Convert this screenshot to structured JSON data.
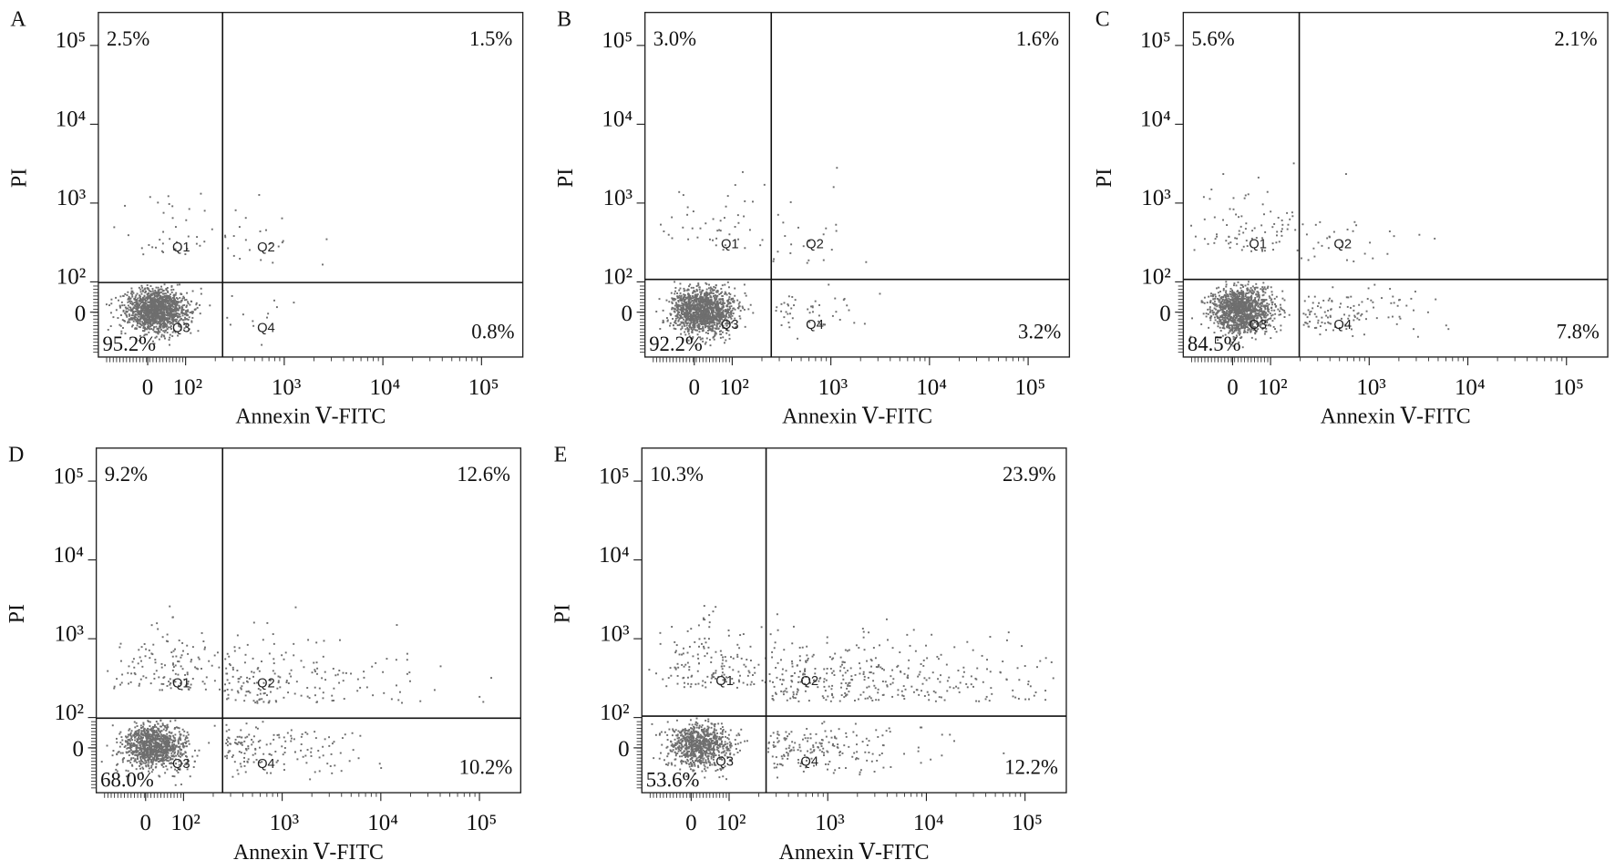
{
  "chart_data": [
    {
      "type": "quadrant-scatter",
      "title": "A",
      "xlabel": "Annexin Ⅴ-FITC",
      "ylabel": "PI",
      "xlim": [
        -130,
        262144
      ],
      "ylim": [
        -148,
        262144
      ],
      "xticks": [
        0,
        {
          "value": 100,
          "label": "10²"
        },
        {
          "value": 1000,
          "label": "10³"
        },
        {
          "value": 10000,
          "label": "10⁴"
        },
        {
          "value": 100000,
          "label": "10⁵"
        }
      ],
      "yticks": [
        0,
        {
          "value": 100,
          "label": "10²"
        },
        {
          "value": 1000,
          "label": "10³"
        },
        {
          "value": 10000,
          "label": "10⁴"
        },
        {
          "value": 100000,
          "label": "10⁵"
        }
      ],
      "categories": [
        "Q1",
        "Q2",
        "Q3",
        "Q4"
      ],
      "values": [
        2.5,
        1.5,
        95.2,
        0.8
      ],
      "value_labels": [
        "2.5%",
        "1.5%",
        "95.2%",
        "0.8%"
      ],
      "color": "#6e6e6e"
    },
    {
      "type": "quadrant-scatter",
      "title": "B",
      "xlabel": "Annexin Ⅴ-FITC",
      "ylabel": "PI",
      "xlim": [
        -130,
        262144
      ],
      "ylim": [
        -148,
        262144
      ],
      "xticks": [
        0,
        {
          "value": 100,
          "label": "10²"
        },
        {
          "value": 1000,
          "label": "10³"
        },
        {
          "value": 10000,
          "label": "10⁴"
        },
        {
          "value": 100000,
          "label": "10⁵"
        }
      ],
      "yticks": [
        0,
        {
          "value": 100,
          "label": "10²"
        },
        {
          "value": 1000,
          "label": "10³"
        },
        {
          "value": 10000,
          "label": "10⁴"
        },
        {
          "value": 100000,
          "label": "10⁵"
        }
      ],
      "categories": [
        "Q1",
        "Q2",
        "Q3",
        "Q4"
      ],
      "values": [
        3.0,
        1.6,
        92.2,
        3.2
      ],
      "value_labels": [
        "3.0%",
        "1.6%",
        "92.2%",
        "3.2%"
      ],
      "color": "#6e6e6e"
    },
    {
      "type": "quadrant-scatter",
      "title": "C",
      "xlabel": "Annexin Ⅴ-FITC",
      "ylabel": "PI",
      "xlim": [
        -130,
        262144
      ],
      "ylim": [
        -148,
        262144
      ],
      "xticks": [
        0,
        {
          "value": 100,
          "label": "10²"
        },
        {
          "value": 1000,
          "label": "10³"
        },
        {
          "value": 10000,
          "label": "10⁴"
        },
        {
          "value": 100000,
          "label": "10⁵"
        }
      ],
      "yticks": [
        0,
        {
          "value": 100,
          "label": "10²"
        },
        {
          "value": 1000,
          "label": "10³"
        },
        {
          "value": 10000,
          "label": "10⁴"
        },
        {
          "value": 100000,
          "label": "10⁵"
        }
      ],
      "categories": [
        "Q1",
        "Q2",
        "Q3",
        "Q4"
      ],
      "values": [
        5.6,
        2.1,
        84.5,
        7.8
      ],
      "value_labels": [
        "5.6%",
        "2.1%",
        "84.5%",
        "7.8%"
      ],
      "color": "#6e6e6e"
    },
    {
      "type": "quadrant-scatter",
      "title": "D",
      "xlabel": "Annexin Ⅴ-FITC",
      "ylabel": "PI",
      "xlim": [
        -130,
        262144
      ],
      "ylim": [
        -148,
        262144
      ],
      "xticks": [
        0,
        {
          "value": 100,
          "label": "10²"
        },
        {
          "value": 1000,
          "label": "10³"
        },
        {
          "value": 10000,
          "label": "10⁴"
        },
        {
          "value": 100000,
          "label": "10⁵"
        }
      ],
      "yticks": [
        0,
        {
          "value": 100,
          "label": "10²"
        },
        {
          "value": 1000,
          "label": "10³"
        },
        {
          "value": 10000,
          "label": "10⁴"
        },
        {
          "value": 100000,
          "label": "10⁵"
        }
      ],
      "categories": [
        "Q1",
        "Q2",
        "Q3",
        "Q4"
      ],
      "values": [
        9.2,
        12.6,
        68.0,
        10.2
      ],
      "value_labels": [
        "9.2%",
        "12.6%",
        "68.0%",
        "10.2%"
      ],
      "color": "#6e6e6e"
    },
    {
      "type": "quadrant-scatter",
      "title": "E",
      "xlabel": "Annexin Ⅴ-FITC",
      "ylabel": "PI",
      "xlim": [
        -130,
        262144
      ],
      "ylim": [
        -148,
        262144
      ],
      "xticks": [
        0,
        {
          "value": 100,
          "label": "10²"
        },
        {
          "value": 1000,
          "label": "10³"
        },
        {
          "value": 10000,
          "label": "10⁴"
        },
        {
          "value": 100000,
          "label": "10⁵"
        }
      ],
      "yticks": [
        0,
        {
          "value": 100,
          "label": "10²"
        },
        {
          "value": 1000,
          "label": "10³"
        },
        {
          "value": 10000,
          "label": "10⁴"
        },
        {
          "value": 100000,
          "label": "10⁵"
        }
      ],
      "categories": [
        "Q1",
        "Q2",
        "Q3",
        "Q4"
      ],
      "values": [
        10.3,
        23.9,
        53.6,
        12.2
      ],
      "value_labels": [
        "10.3%",
        "23.9%",
        "53.6%",
        "12.2%"
      ],
      "color": "#6e6e6e"
    }
  ]
}
